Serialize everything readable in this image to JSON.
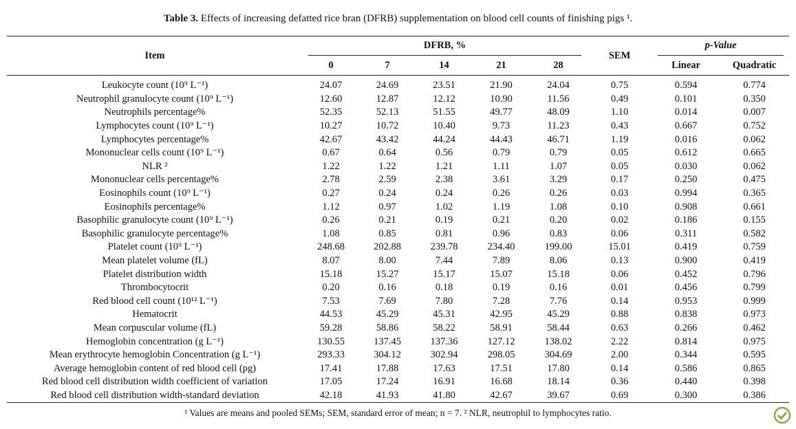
{
  "caption": {
    "label": "Table 3.",
    "text": "Effects of increasing defatted rice bran (DFRB) supplementation on blood cell counts of finishing pigs ¹."
  },
  "header": {
    "item": "Item",
    "group": "DFRB, %",
    "levels": [
      "0",
      "7",
      "14",
      "21",
      "28"
    ],
    "sem": "SEM",
    "pvalue": "p-Value",
    "contrasts": [
      "Linear",
      "Quadratic"
    ]
  },
  "table": {
    "rows": [
      [
        "Leukocyte count (10⁹ L⁻¹)",
        "24.07",
        "24.69",
        "23.51",
        "21.90",
        "24.04",
        "0.75",
        "0.594",
        "0.774"
      ],
      [
        "Neutrophil granulocyte count (10⁹ L⁻¹)",
        "12.60",
        "12.87",
        "12.12",
        "10.90",
        "11.56",
        "0.49",
        "0.101",
        "0.350"
      ],
      [
        "Neutrophils percentage%",
        "52.35",
        "52.13",
        "51.55",
        "49.77",
        "48.09",
        "1.10",
        "0.014",
        "0.007"
      ],
      [
        "Lymphocytes count (10⁹ L⁻¹)",
        "10.27",
        "10.72",
        "10.40",
        "9.73",
        "11.23",
        "0.43",
        "0.667",
        "0.752"
      ],
      [
        "Lymphocytes percentage%",
        "42.67",
        "43.42",
        "44.24",
        "44.43",
        "46.71",
        "1.19",
        "0.016",
        "0.062"
      ],
      [
        "Mononuclear cells count (10⁹ L⁻¹)",
        "0.67",
        "0.64",
        "0.56",
        "0.79",
        "0.79",
        "0.05",
        "0.612",
        "0.665"
      ],
      [
        "NLR ²",
        "1.22",
        "1.22",
        "1.21",
        "1.11",
        "1.07",
        "0.05",
        "0.030",
        "0.062"
      ],
      [
        "Mononuclear cells percentage%",
        "2.78",
        "2.59",
        "2.38",
        "3.61",
        "3.29",
        "0.17",
        "0.250",
        "0.475"
      ],
      [
        "Eosinophils count (10⁹ L⁻¹)",
        "0.27",
        "0.24",
        "0.24",
        "0.26",
        "0.26",
        "0.03",
        "0.994",
        "0.365"
      ],
      [
        "Eosinophils percentage%",
        "1.12",
        "0.97",
        "1.02",
        "1.19",
        "1.08",
        "0.10",
        "0.908",
        "0.661"
      ],
      [
        "Basophilic granulocyte count (10⁹ L⁻¹)",
        "0.26",
        "0.21",
        "0.19",
        "0.21",
        "0.20",
        "0.02",
        "0.186",
        "0.155"
      ],
      [
        "Basophilic granulocyte percentage%",
        "1.08",
        "0.85",
        "0.81",
        "0.96",
        "0.83",
        "0.06",
        "0.311",
        "0.582"
      ],
      [
        "Platelet count (10⁹ L⁻¹)",
        "248.68",
        "202.88",
        "239.78",
        "234.40",
        "199.00",
        "15.01",
        "0.419",
        "0.759"
      ],
      [
        "Mean platelet volume (fL)",
        "8.07",
        "8.00",
        "7.44",
        "7.89",
        "8.06",
        "0.13",
        "0.900",
        "0.419"
      ],
      [
        "Platelet distribution width",
        "15.18",
        "15.27",
        "15.17",
        "15.07",
        "15.18",
        "0.06",
        "0.452",
        "0.796"
      ],
      [
        "Thrombocytocrit",
        "0.20",
        "0.16",
        "0.18",
        "0.19",
        "0.16",
        "0.01",
        "0.456",
        "0.799"
      ],
      [
        "Red blood cell count (10¹² L⁻¹)",
        "7.53",
        "7.69",
        "7.80",
        "7.28",
        "7.76",
        "0.14",
        "0.953",
        "0.999"
      ],
      [
        "Hematocrit",
        "44.53",
        "45.29",
        "45.31",
        "42.95",
        "45.29",
        "0.88",
        "0.838",
        "0.973"
      ],
      [
        "Mean corpuscular volume (fL)",
        "59.28",
        "58.86",
        "58.22",
        "58.91",
        "58.44",
        "0.63",
        "0.266",
        "0.462"
      ],
      [
        "Hemoglobin concentration (g L⁻¹)",
        "130.55",
        "137.45",
        "137.36",
        "127.12",
        "138.02",
        "2.22",
        "0.814",
        "0.975"
      ],
      [
        "Mean erythrocyte hemoglobin Concentration (g L⁻¹)",
        "293.33",
        "304.12",
        "302.94",
        "298.05",
        "304.69",
        "2.00",
        "0.344",
        "0.595"
      ],
      [
        "Average hemoglobin content of red blood cell (pg)",
        "17.41",
        "17.88",
        "17.63",
        "17.51",
        "17.80",
        "0.14",
        "0.586",
        "0.865"
      ],
      [
        "Red blood cell distribution width coefficient of variation",
        "17.05",
        "17.24",
        "16.91",
        "16.68",
        "18.14",
        "0.36",
        "0.440",
        "0.398"
      ],
      [
        "Red blood cell distribution width-standard deviation",
        "42.18",
        "41.93",
        "41.80",
        "42.67",
        "39.67",
        "0.69",
        "0.300",
        "0.386"
      ]
    ]
  },
  "footnote": "¹ Values are means and pooled SEMs; SEM, standard error of mean; n = 7. ² NLR, neutrophil to lymphocytes ratio."
}
